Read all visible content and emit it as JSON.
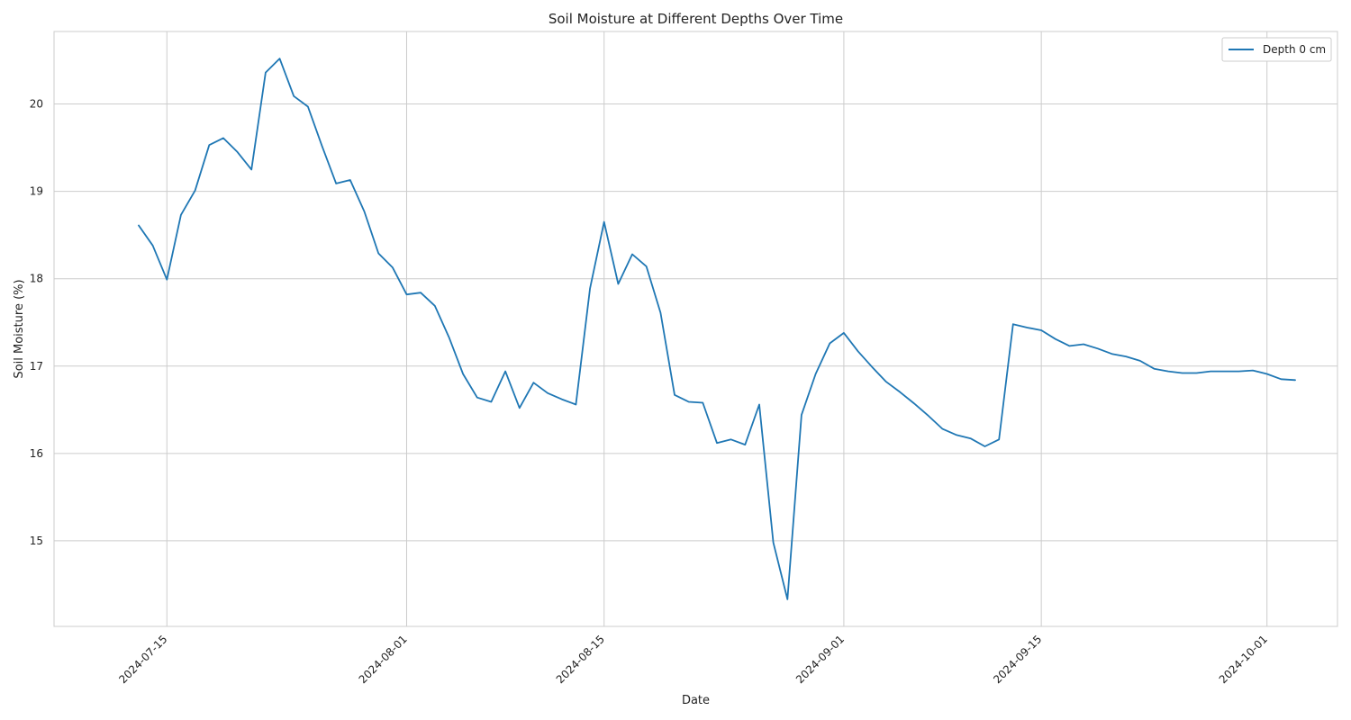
{
  "chart_data": {
    "type": "line",
    "title": "Soil Moisture at Different Depths Over Time",
    "xlabel": "Date",
    "ylabel": "Soil Moisture (%)",
    "xlim": [
      "2024-07-07",
      "2024-10-06"
    ],
    "ylim": [
      14.02,
      20.83
    ],
    "x_ticks": [
      "2024-07-15",
      "2024-08-01",
      "2024-08-15",
      "2024-09-01",
      "2024-09-15",
      "2024-10-01"
    ],
    "y_ticks": [
      15,
      16,
      17,
      18,
      19,
      20
    ],
    "grid": true,
    "legend_position": "top-right",
    "series": [
      {
        "name": "Depth 0 cm",
        "color": "#1f77b4",
        "x": [
          "2024-07-13",
          "2024-07-14",
          "2024-07-15",
          "2024-07-16",
          "2024-07-17",
          "2024-07-18",
          "2024-07-19",
          "2024-07-20",
          "2024-07-21",
          "2024-07-22",
          "2024-07-23",
          "2024-07-24",
          "2024-07-25",
          "2024-07-26",
          "2024-07-27",
          "2024-07-28",
          "2024-07-29",
          "2024-07-30",
          "2024-07-31",
          "2024-08-01",
          "2024-08-02",
          "2024-08-03",
          "2024-08-04",
          "2024-08-05",
          "2024-08-06",
          "2024-08-07",
          "2024-08-08",
          "2024-08-09",
          "2024-08-10",
          "2024-08-11",
          "2024-08-12",
          "2024-08-13",
          "2024-08-14",
          "2024-08-15",
          "2024-08-16",
          "2024-08-17",
          "2024-08-18",
          "2024-08-19",
          "2024-08-20",
          "2024-08-21",
          "2024-08-22",
          "2024-08-23",
          "2024-08-24",
          "2024-08-25",
          "2024-08-26",
          "2024-08-27",
          "2024-08-28",
          "2024-08-29",
          "2024-08-30",
          "2024-08-31",
          "2024-09-01",
          "2024-09-02",
          "2024-09-03",
          "2024-09-04",
          "2024-09-05",
          "2024-09-06",
          "2024-09-07",
          "2024-09-08",
          "2024-09-09",
          "2024-09-10",
          "2024-09-11",
          "2024-09-12",
          "2024-09-13",
          "2024-09-14",
          "2024-09-15",
          "2024-09-16",
          "2024-09-17",
          "2024-09-18",
          "2024-09-19",
          "2024-09-20",
          "2024-09-21",
          "2024-09-22",
          "2024-09-23",
          "2024-09-24",
          "2024-09-25",
          "2024-09-26",
          "2024-09-27",
          "2024-09-28",
          "2024-09-29",
          "2024-09-30",
          "2024-10-01",
          "2024-10-02",
          "2024-10-03"
        ],
        "values": [
          18.61,
          18.38,
          17.99,
          18.73,
          19.01,
          19.53,
          19.61,
          19.45,
          19.25,
          20.36,
          20.52,
          20.09,
          19.97,
          19.52,
          19.09,
          19.13,
          18.77,
          18.29,
          18.13,
          17.82,
          17.84,
          17.69,
          17.33,
          16.91,
          16.64,
          16.59,
          16.94,
          16.52,
          16.81,
          16.69,
          16.62,
          16.56,
          17.89,
          18.65,
          17.94,
          18.28,
          18.14,
          17.61,
          16.67,
          16.59,
          16.58,
          16.12,
          16.16,
          16.1,
          16.56,
          14.98,
          14.33,
          16.44,
          16.91,
          17.26,
          17.38,
          17.17,
          16.99,
          16.82,
          16.7,
          16.57,
          16.43,
          16.28,
          16.21,
          16.17,
          16.08,
          16.16,
          17.48,
          17.44,
          17.41,
          17.31,
          17.23,
          17.25,
          17.2,
          17.14,
          17.11,
          17.06,
          16.97,
          16.94,
          16.92,
          16.92,
          16.94,
          16.94,
          16.94,
          16.95,
          16.91,
          16.85,
          16.84
        ]
      }
    ]
  }
}
